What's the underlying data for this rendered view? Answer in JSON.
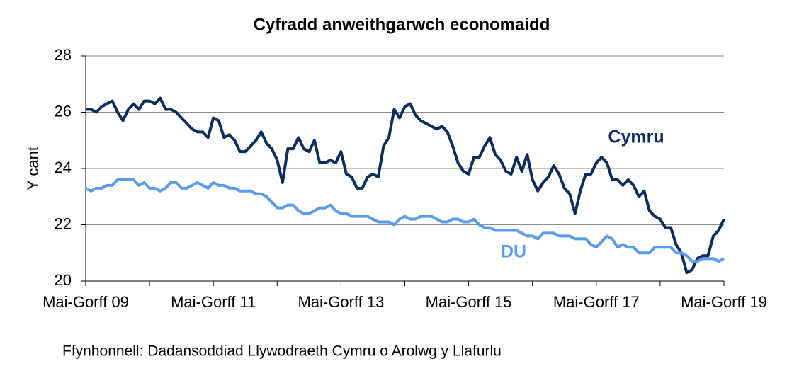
{
  "chart_data": {
    "type": "line",
    "title": "Cyfradd anweithgarwch economaidd",
    "y_label": "Y cant",
    "source": "Ffynhonnell: Dadansoddiad Llywodraeth Cymru o Arolwg y Llafurlu",
    "ylim": [
      20,
      28
    ],
    "yticks": [
      20,
      22,
      24,
      26,
      28
    ],
    "grid": true,
    "categories": [
      "Mai-Gorff 09",
      null,
      null,
      null,
      null,
      null,
      null,
      null,
      null,
      null,
      null,
      null,
      null,
      null,
      null,
      null,
      null,
      null,
      null,
      null,
      null,
      null,
      null,
      null,
      "Mai-Gorff 11",
      null,
      null,
      null,
      null,
      null,
      null,
      null,
      null,
      null,
      null,
      null,
      null,
      null,
      null,
      null,
      null,
      null,
      null,
      null,
      null,
      null,
      null,
      null,
      "Mai-Gorff 13",
      null,
      null,
      null,
      null,
      null,
      null,
      null,
      null,
      null,
      null,
      null,
      null,
      null,
      null,
      null,
      null,
      null,
      null,
      null,
      null,
      null,
      null,
      null,
      "Mai-Gorff 15",
      null,
      null,
      null,
      null,
      null,
      null,
      null,
      null,
      null,
      null,
      null,
      null,
      null,
      null,
      null,
      null,
      null,
      null,
      null,
      null,
      null,
      null,
      null,
      "Mai-Gorff 17",
      null,
      null,
      null,
      null,
      null,
      null,
      null,
      null,
      null,
      null,
      null,
      null,
      null,
      null,
      null,
      null,
      null,
      null,
      null,
      null,
      null,
      null,
      null,
      "Mai-Gorff 19"
    ],
    "series": [
      {
        "name": "Cymru",
        "color": "#0b2c5f",
        "values": [
          26.1,
          26.1,
          26.0,
          26.2,
          26.3,
          26.4,
          26.0,
          25.7,
          26.1,
          26.3,
          26.1,
          26.4,
          26.4,
          26.3,
          26.5,
          26.1,
          26.1,
          26.0,
          25.8,
          25.6,
          25.4,
          25.3,
          25.3,
          25.1,
          25.8,
          25.7,
          25.1,
          25.2,
          25.0,
          24.6,
          24.6,
          24.8,
          25.0,
          25.3,
          24.9,
          24.7,
          24.3,
          23.5,
          24.7,
          24.7,
          25.1,
          24.7,
          24.6,
          25.0,
          24.2,
          24.2,
          24.3,
          24.2,
          24.6,
          23.8,
          23.7,
          23.3,
          23.3,
          23.7,
          23.8,
          23.7,
          24.8,
          25.1,
          26.1,
          25.8,
          26.2,
          26.3,
          25.9,
          25.7,
          25.6,
          25.5,
          25.4,
          25.5,
          25.3,
          24.8,
          24.2,
          23.9,
          23.8,
          24.4,
          24.4,
          24.8,
          25.1,
          24.5,
          24.3,
          23.9,
          23.8,
          24.4,
          23.9,
          24.5,
          23.6,
          23.2,
          23.5,
          23.7,
          24.1,
          23.8,
          23.3,
          23.1,
          22.4,
          23.2,
          23.8,
          23.8,
          24.2,
          24.4,
          24.2,
          23.6,
          23.6,
          23.4,
          23.6,
          23.4,
          23.0,
          23.2,
          22.5,
          22.3,
          22.2,
          21.9,
          21.9,
          21.3,
          21.0,
          20.3,
          20.4,
          20.8,
          20.9,
          20.9,
          21.6,
          21.8,
          22.2
        ]
      },
      {
        "name": "DU",
        "color": "#5b9bef",
        "values": [
          23.3,
          23.2,
          23.3,
          23.3,
          23.4,
          23.4,
          23.6,
          23.6,
          23.6,
          23.6,
          23.4,
          23.5,
          23.3,
          23.3,
          23.2,
          23.3,
          23.5,
          23.5,
          23.3,
          23.3,
          23.4,
          23.5,
          23.4,
          23.3,
          23.5,
          23.4,
          23.4,
          23.3,
          23.3,
          23.2,
          23.2,
          23.2,
          23.1,
          23.1,
          23.0,
          22.8,
          22.6,
          22.6,
          22.7,
          22.7,
          22.5,
          22.4,
          22.4,
          22.5,
          22.6,
          22.6,
          22.7,
          22.5,
          22.4,
          22.4,
          22.3,
          22.3,
          22.3,
          22.3,
          22.2,
          22.1,
          22.1,
          22.1,
          22.0,
          22.2,
          22.3,
          22.2,
          22.2,
          22.3,
          22.3,
          22.3,
          22.2,
          22.1,
          22.1,
          22.2,
          22.2,
          22.1,
          22.1,
          22.2,
          22.0,
          21.9,
          21.9,
          21.8,
          21.8,
          21.8,
          21.8,
          21.8,
          21.7,
          21.6,
          21.6,
          21.5,
          21.7,
          21.7,
          21.7,
          21.6,
          21.6,
          21.6,
          21.5,
          21.5,
          21.5,
          21.3,
          21.2,
          21.4,
          21.6,
          21.5,
          21.2,
          21.3,
          21.2,
          21.2,
          21.0,
          21.0,
          21.0,
          21.2,
          21.2,
          21.2,
          21.2,
          21.0,
          21.0,
          20.9,
          20.7,
          20.7,
          20.8,
          20.8,
          20.8,
          20.7,
          20.8
        ]
      }
    ]
  }
}
